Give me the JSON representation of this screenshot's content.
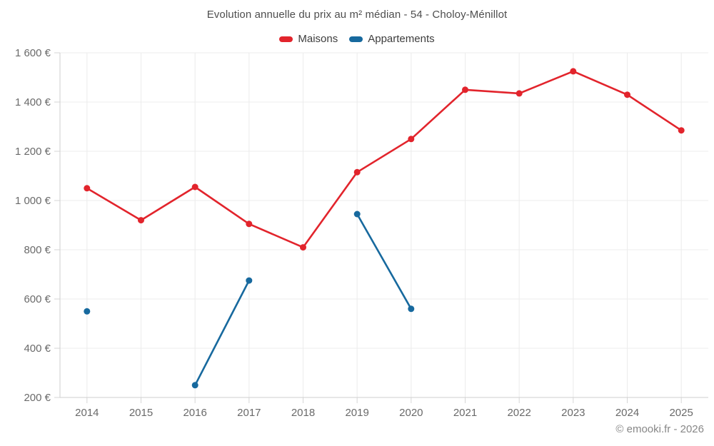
{
  "title": "Evolution annuelle du prix au m² médian - 54 - Choloy-Ménillot",
  "legend": {
    "items": [
      {
        "label": "Maisons",
        "color": "#e2242c"
      },
      {
        "label": "Appartements",
        "color": "#17699e"
      }
    ]
  },
  "footer": {
    "copyright": "© emooki.fr - 2026"
  },
  "colors": {
    "background": "#ffffff",
    "grid": "#ececec",
    "axis": "#cfcfcf",
    "tick": "#d6d6d6",
    "tick_label": "#6a6a6a",
    "title": "#4e4e4e",
    "legend_text": "#3d3d3d",
    "copyright": "#878787",
    "maisons": "#e2242c",
    "appartements": "#17699e"
  },
  "chart_data": {
    "type": "line",
    "title": "Evolution annuelle du prix au m² médian - 54 - Choloy-Ménillot",
    "categories": [
      "2014",
      "2015",
      "2016",
      "2017",
      "2018",
      "2019",
      "2020",
      "2021",
      "2022",
      "2023",
      "2024",
      "2025"
    ],
    "series": [
      {
        "name": "Maisons",
        "color": "#e2242c",
        "values": [
          1050,
          920,
          1055,
          905,
          810,
          1115,
          1250,
          1450,
          1435,
          1525,
          1430,
          1285
        ]
      },
      {
        "name": "Appartements",
        "color": "#17699e",
        "values": [
          550,
          null,
          250,
          675,
          null,
          945,
          560,
          null,
          null,
          null,
          null,
          null
        ]
      }
    ],
    "ylabel": "",
    "xlabel": "",
    "ylim": [
      200,
      1600
    ],
    "ytick_step": 200,
    "ytick_labels": [
      "200 €",
      "400 €",
      "600 €",
      "800 €",
      "1 000 €",
      "1 200 €",
      "1 400 €",
      "1 600 €"
    ],
    "grid": true,
    "legend_position": "top",
    "marker_radius": 4.5,
    "line_width": 2.6
  }
}
